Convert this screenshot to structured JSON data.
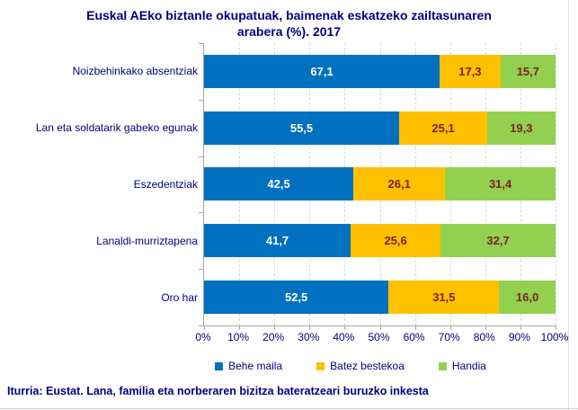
{
  "header": {
    "title": "Euskal AEko biztanle okupatuak, baimenak eskatzeko zailtasunaren arabera (%). 2017",
    "title_lines": [
      "Euskal AEko biztanle okupatuak, baimenak eskatzeko zailtasunaren",
      "arabera (%). 2017"
    ]
  },
  "footer": {
    "text": "Iturria: Eustat. Lana, familia eta norberaren bizitza bateratzeari buruzko inkesta"
  },
  "colors": {
    "title_text": "#000080",
    "axis_line": "#a6a6a6",
    "gridline": "#d9d9d9",
    "background": "#ffffff"
  },
  "chart_data": {
    "type": "bar",
    "orientation": "horizontal",
    "stacked": true,
    "title": "Euskal AEko biztanle okupatuak, baimenak eskatzeko zailtasunaren arabera (%). 2017",
    "categories": [
      "Noizbehinkako absentziak",
      "Lan eta soldatarik gabeko egunak",
      "Eszedentziak",
      "Lanaldi-murriztapena",
      "Oro har"
    ],
    "series": [
      {
        "name": "Behe maila",
        "color": "#0070c0",
        "label_color": "#ffffff",
        "values": [
          67.1,
          55.5,
          42.5,
          41.7,
          52.5
        ],
        "labels": [
          "67,1",
          "55,5",
          "42,5",
          "41,7",
          "52,5"
        ]
      },
      {
        "name": "Batez bestekoa",
        "color": "#ffc000",
        "label_color": "#7b2321",
        "values": [
          17.3,
          25.1,
          26.1,
          25.6,
          31.5
        ],
        "labels": [
          "17,3",
          "25,1",
          "26,1",
          "25,6",
          "31,5"
        ]
      },
      {
        "name": "Handia",
        "color": "#92d050",
        "label_color": "#7b2321",
        "values": [
          15.7,
          19.3,
          31.4,
          32.7,
          16.0
        ],
        "labels": [
          "15,7",
          "19,3",
          "31,4",
          "32,7",
          "16,0"
        ]
      }
    ],
    "xlabel": "",
    "ylabel": "",
    "xlim": [
      0,
      100
    ],
    "x_ticks": [
      "0%",
      "10%",
      "20%",
      "30%",
      "40%",
      "50%",
      "60%",
      "70%",
      "80%",
      "90%",
      "100%"
    ],
    "grid": true,
    "legend_position": "bottom"
  }
}
